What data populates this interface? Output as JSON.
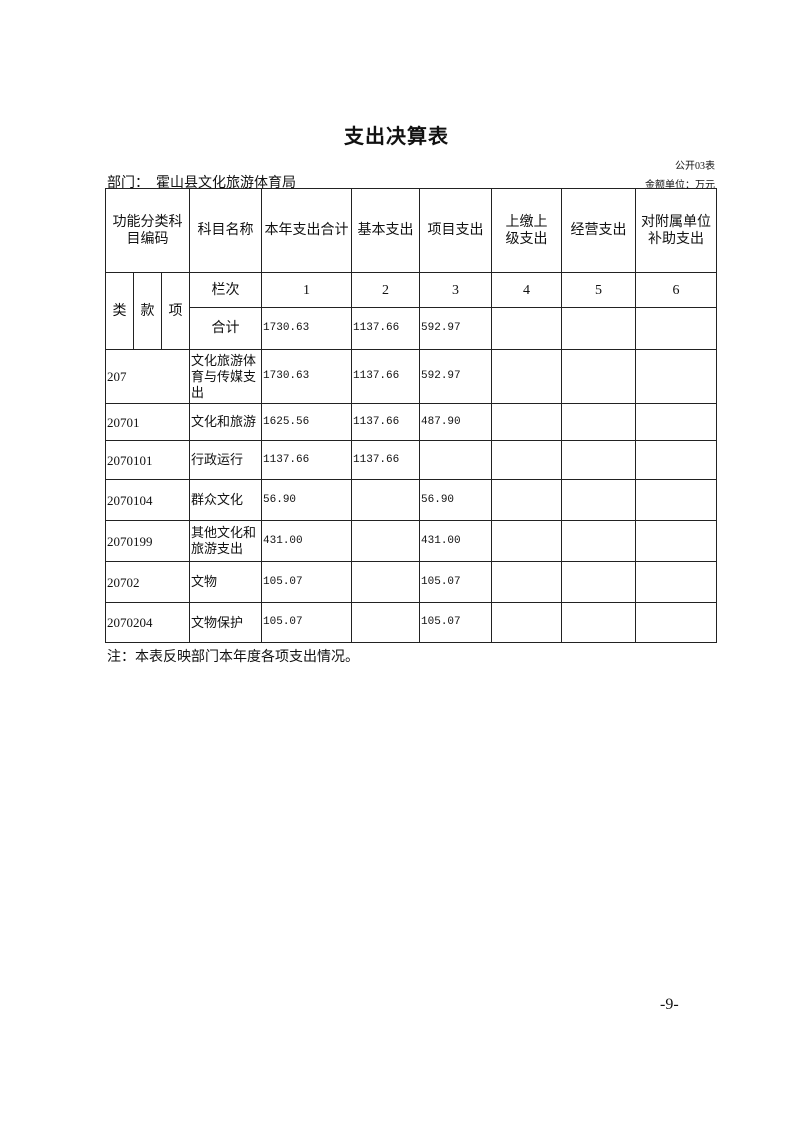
{
  "title": "支出决算表",
  "form_no": "公开03表",
  "department_label": "部门：",
  "department": "霍山县文化旅游体育局",
  "unit": "金额单位：万元",
  "headers": {
    "code": "功能分类科目编码",
    "name": "科目名称",
    "total": "本年支出合计",
    "basic": "基本支出",
    "project": "项目支出",
    "upper": "上缴上级支出",
    "business": "经营支出",
    "subsidy": "对附属单位补助支出",
    "lei": "类",
    "kuan": "款",
    "xiang": "项",
    "lanci": "栏次",
    "col_numbers": [
      "1",
      "2",
      "3",
      "4",
      "5",
      "6"
    ],
    "heji": "合计"
  },
  "total_row": {
    "total": "1730.63",
    "basic": "1137.66",
    "project": "592.97",
    "upper": "",
    "business": "",
    "subsidy": ""
  },
  "rows": [
    {
      "code": "207",
      "name": "文化旅游体育与传媒支出",
      "total": "1730.63",
      "basic": "1137.66",
      "project": "592.97",
      "upper": "",
      "business": "",
      "subsidy": ""
    },
    {
      "code": "20701",
      "name": "文化和旅游",
      "total": "1625.56",
      "basic": "1137.66",
      "project": "487.90",
      "upper": "",
      "business": "",
      "subsidy": ""
    },
    {
      "code": "2070101",
      "name": "行政运行",
      "total": "1137.66",
      "basic": "1137.66",
      "project": "",
      "upper": "",
      "business": "",
      "subsidy": ""
    },
    {
      "code": "2070104",
      "name": "群众文化",
      "total": "56.90",
      "basic": "",
      "project": "56.90",
      "upper": "",
      "business": "",
      "subsidy": ""
    },
    {
      "code": "2070199",
      "name": "其他文化和旅游支出",
      "total": "431.00",
      "basic": "",
      "project": "431.00",
      "upper": "",
      "business": "",
      "subsidy": ""
    },
    {
      "code": "20702",
      "name": "文物",
      "total": "105.07",
      "basic": "",
      "project": "105.07",
      "upper": "",
      "business": "",
      "subsidy": ""
    },
    {
      "code": "2070204",
      "name": "文物保护",
      "total": "105.07",
      "basic": "",
      "project": "105.07",
      "upper": "",
      "business": "",
      "subsidy": ""
    }
  ],
  "note": "注：本表反映部门本年度各项支出情况。",
  "page_number": "-9-"
}
